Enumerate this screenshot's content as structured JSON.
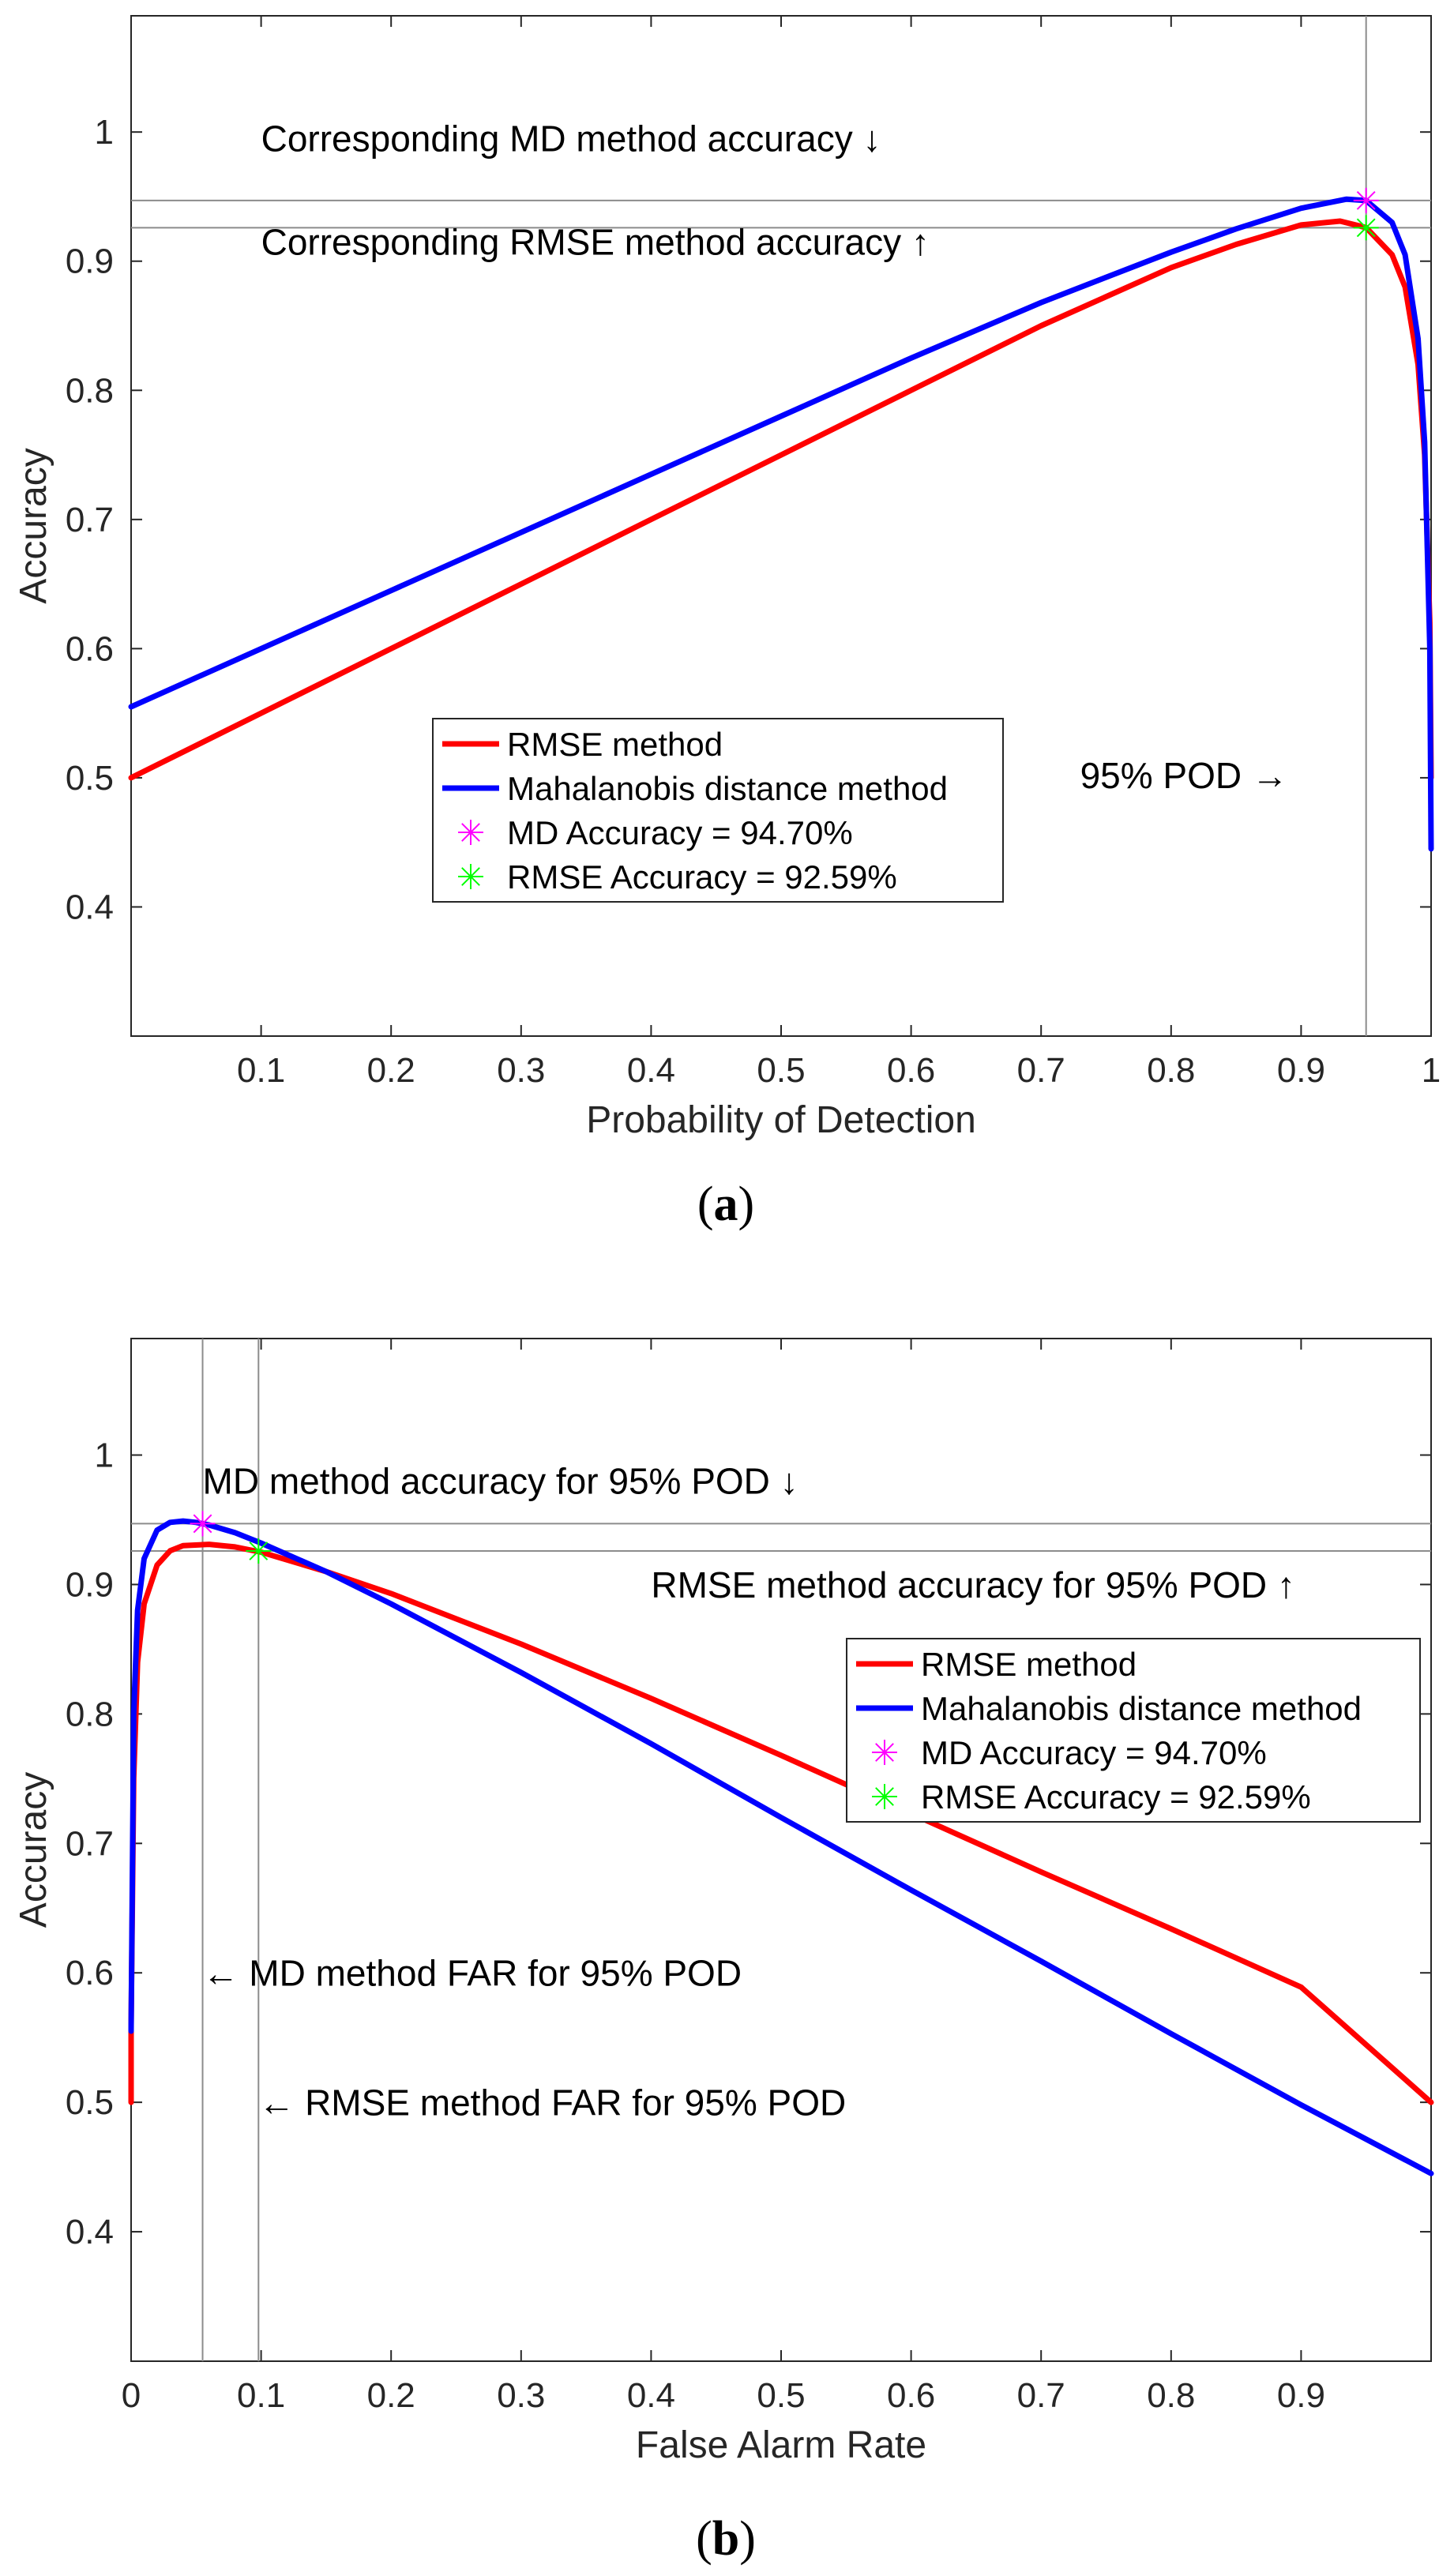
{
  "colors": {
    "rmse": "#ff0000",
    "md": "#0000ff",
    "md_marker": "#ff00ff",
    "rmse_marker": "#00ff00",
    "guide": "#8c8c8c",
    "axis": "#262626"
  },
  "chart_data": [
    {
      "type": "line",
      "panel": "a",
      "caption_letter": "a",
      "xlabel": "Probability of Detection",
      "ylabel": "Accuracy",
      "xlim": [
        0,
        1
      ],
      "ylim": [
        0.3,
        1.09
      ],
      "xticks": [
        0.1,
        0.2,
        0.3,
        0.4,
        0.5,
        0.6,
        0.7,
        0.8,
        0.9,
        1
      ],
      "xtick_labels": [
        "0.1",
        "0.2",
        "0.3",
        "0.4",
        "0.5",
        "0.6",
        "0.7",
        "0.8",
        "0.9",
        "1"
      ],
      "yticks": [
        0.4,
        0.5,
        0.6,
        0.7,
        0.8,
        0.9,
        1
      ],
      "ytick_labels": [
        "0.4",
        "0.5",
        "0.6",
        "0.7",
        "0.8",
        "0.9",
        "1"
      ],
      "series": [
        {
          "name": "RMSE method",
          "color_key": "rmse",
          "x": [
            0,
            0.1,
            0.2,
            0.3,
            0.4,
            0.5,
            0.6,
            0.7,
            0.8,
            0.85,
            0.9,
            0.93,
            0.95,
            0.97,
            0.98,
            0.99,
            0.995,
            0.999,
            1.0
          ],
          "y": [
            0.5,
            0.55,
            0.6,
            0.65,
            0.7,
            0.75,
            0.8,
            0.85,
            0.895,
            0.913,
            0.928,
            0.931,
            0.926,
            0.905,
            0.88,
            0.82,
            0.75,
            0.62,
            0.5
          ]
        },
        {
          "name": "Mahalanobis distance method",
          "color_key": "md",
          "x": [
            0,
            0.1,
            0.2,
            0.3,
            0.4,
            0.5,
            0.6,
            0.7,
            0.8,
            0.85,
            0.9,
            0.935,
            0.95,
            0.97,
            0.98,
            0.99,
            0.995,
            0.999,
            1.0
          ],
          "y": [
            0.555,
            0.6,
            0.645,
            0.69,
            0.735,
            0.78,
            0.825,
            0.868,
            0.907,
            0.925,
            0.941,
            0.948,
            0.947,
            0.93,
            0.905,
            0.84,
            0.76,
            0.6,
            0.445
          ]
        }
      ],
      "markers": [
        {
          "name": "MD Accuracy = 94.70%",
          "color_key": "md_marker",
          "x": 0.95,
          "y": 0.947
        },
        {
          "name": "RMSE Accuracy = 92.59%",
          "color_key": "rmse_marker",
          "x": 0.95,
          "y": 0.9259
        }
      ],
      "hlines": [
        0.947,
        0.9259
      ],
      "vlines": [
        0.95
      ],
      "annotations": [
        {
          "text": "Corresponding MD method accuracy ↓",
          "x": 0.1,
          "y": 0.985
        },
        {
          "text": "Corresponding RMSE method accuracy ↑",
          "x": 0.1,
          "y": 0.905
        },
        {
          "text": "95% POD →",
          "x": 0.73,
          "y": 0.492
        }
      ],
      "legend": {
        "position": "center",
        "entries": [
          "RMSE method",
          "Mahalanobis distance method",
          "MD Accuracy = 94.70%",
          "RMSE Accuracy = 92.59%"
        ]
      }
    },
    {
      "type": "line",
      "panel": "b",
      "caption_letter": "b",
      "xlabel": "False Alarm Rate",
      "ylabel": "Accuracy",
      "xlim": [
        0,
        1
      ],
      "ylim": [
        0.3,
        1.09
      ],
      "xticks": [
        0,
        0.1,
        0.2,
        0.3,
        0.4,
        0.5,
        0.6,
        0.7,
        0.8,
        0.9
      ],
      "xtick_labels": [
        "0",
        "0.1",
        "0.2",
        "0.3",
        "0.4",
        "0.5",
        "0.6",
        "0.7",
        "0.8",
        "0.9"
      ],
      "yticks": [
        0.4,
        0.5,
        0.6,
        0.7,
        0.8,
        0.9,
        1
      ],
      "ytick_labels": [
        "0.4",
        "0.5",
        "0.6",
        "0.7",
        "0.8",
        "0.9",
        "1"
      ],
      "series": [
        {
          "name": "RMSE method",
          "color_key": "rmse",
          "x": [
            0,
            0.0,
            0.002,
            0.005,
            0.01,
            0.02,
            0.03,
            0.04,
            0.06,
            0.08,
            0.1,
            0.15,
            0.2,
            0.3,
            0.4,
            0.5,
            0.6,
            0.7,
            0.8,
            0.9,
            1.0
          ],
          "y": [
            0.5,
            0.56,
            0.75,
            0.84,
            0.885,
            0.915,
            0.926,
            0.93,
            0.931,
            0.929,
            0.925,
            0.91,
            0.893,
            0.854,
            0.812,
            0.768,
            0.723,
            0.678,
            0.634,
            0.589,
            0.5
          ]
        },
        {
          "name": "Mahalanobis distance method",
          "color_key": "md",
          "x": [
            0,
            0.002,
            0.005,
            0.01,
            0.02,
            0.03,
            0.04,
            0.05,
            0.06,
            0.08,
            0.1,
            0.15,
            0.2,
            0.3,
            0.4,
            0.5,
            0.6,
            0.7,
            0.8,
            0.9,
            1.0
          ],
          "y": [
            0.555,
            0.8,
            0.88,
            0.92,
            0.942,
            0.948,
            0.949,
            0.948,
            0.946,
            0.94,
            0.932,
            0.91,
            0.885,
            0.832,
            0.777,
            0.72,
            0.664,
            0.609,
            0.553,
            0.498,
            0.445
          ]
        }
      ],
      "markers": [
        {
          "name": "MD Accuracy = 94.70%",
          "color_key": "md_marker",
          "x": 0.055,
          "y": 0.947
        },
        {
          "name": "RMSE Accuracy = 92.59%",
          "color_key": "rmse_marker",
          "x": 0.098,
          "y": 0.9259
        }
      ],
      "hlines": [
        0.947,
        0.9259
      ],
      "vlines": [
        0.055,
        0.098
      ],
      "annotations": [
        {
          "text": "MD method accuracy for 95% POD ↓",
          "x": 0.055,
          "y": 0.97
        },
        {
          "text": "RMSE method accuracy for 95% POD ↑",
          "x": 0.4,
          "y": 0.89
        },
        {
          "text": "← MD method FAR for 95% POD",
          "x": 0.055,
          "y": 0.59
        },
        {
          "text": "← RMSE method FAR for 95% POD",
          "x": 0.098,
          "y": 0.49
        }
      ],
      "legend": {
        "position": "upper-right",
        "entries": [
          "RMSE method",
          "Mahalanobis distance method",
          "MD Accuracy = 94.70%",
          "RMSE Accuracy = 92.59%"
        ]
      }
    }
  ]
}
